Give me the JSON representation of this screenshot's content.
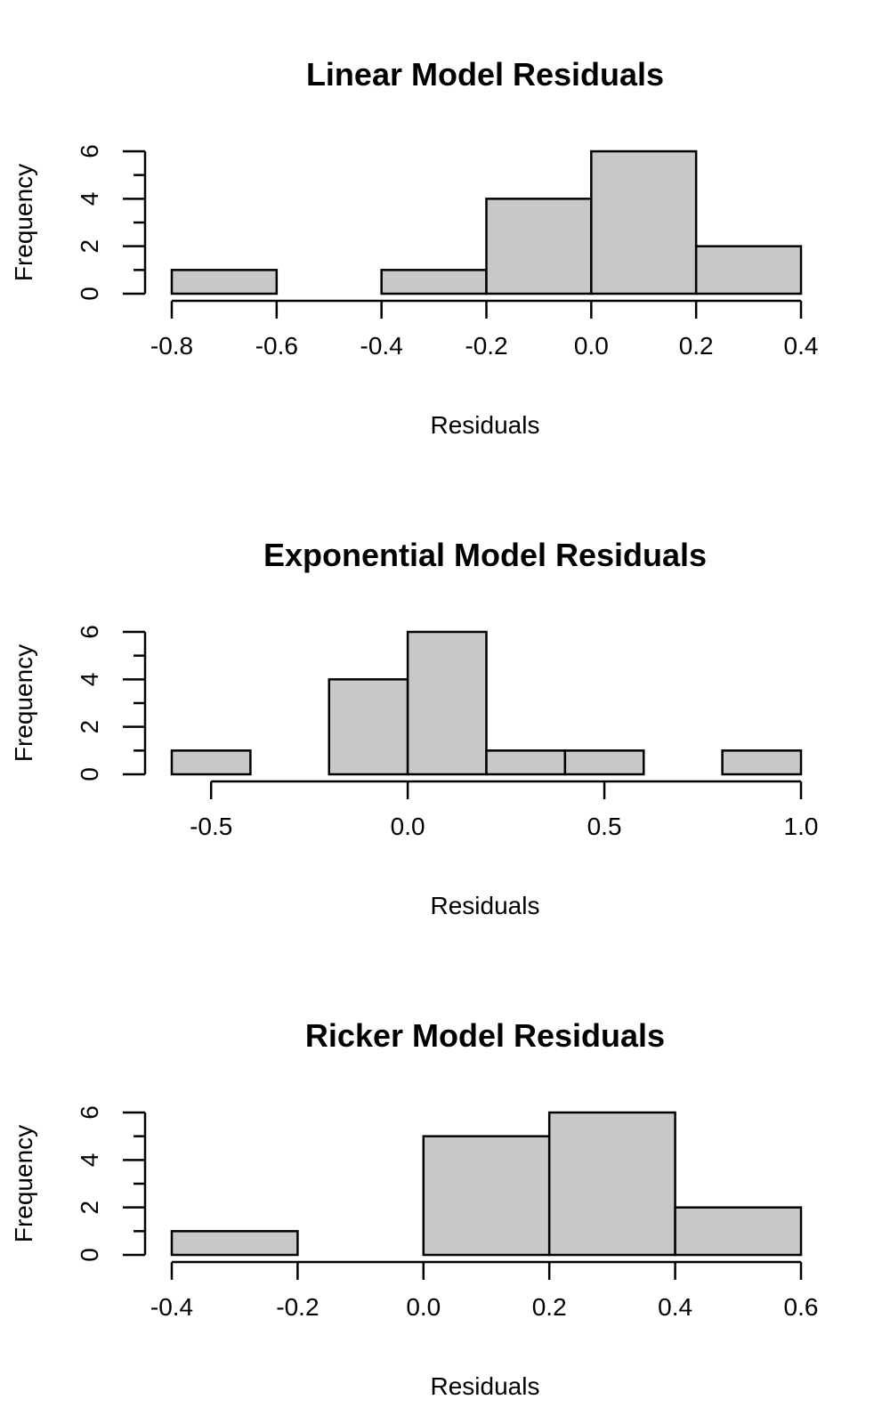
{
  "chart_data": [
    {
      "type": "bar",
      "title": "Linear Model Residuals",
      "xlabel": "Residuals",
      "ylabel": "Frequency",
      "bin_edges": [
        -0.8,
        -0.6,
        -0.4,
        -0.2,
        0.0,
        0.2,
        0.4
      ],
      "values": [
        1,
        0,
        1,
        4,
        6,
        2
      ],
      "xlim": [
        -0.8,
        0.4
      ],
      "ylim": [
        0,
        6
      ],
      "x_ticks": [
        -0.8,
        -0.6,
        -0.4,
        -0.2,
        0.0,
        0.2,
        0.4
      ],
      "x_tick_labels": [
        "-0.8",
        "-0.6",
        "-0.4",
        "-0.2",
        "0.0",
        "0.2",
        "0.4"
      ],
      "y_ticks": [
        0,
        2,
        4,
        6
      ],
      "y_tick_labels": [
        "0",
        "2",
        "4",
        "6"
      ],
      "y_minor_ticks": [
        1,
        3,
        5
      ],
      "bar_color": "#c8c8c8",
      "grid": false
    },
    {
      "type": "bar",
      "title": "Exponential Model Residuals",
      "xlabel": "Residuals",
      "ylabel": "Frequency",
      "bin_edges": [
        -0.6,
        -0.4,
        -0.2,
        0.0,
        0.2,
        0.4,
        0.6,
        0.8,
        1.0
      ],
      "values": [
        1,
        0,
        4,
        6,
        1,
        1,
        0,
        1
      ],
      "xlim": [
        -0.6,
        1.0
      ],
      "ylim": [
        0,
        6
      ],
      "x_ticks": [
        -0.5,
        0.0,
        0.5,
        1.0
      ],
      "x_tick_labels": [
        "-0.5",
        "0.0",
        "0.5",
        "1.0"
      ],
      "y_ticks": [
        0,
        2,
        4,
        6
      ],
      "y_tick_labels": [
        "0",
        "2",
        "4",
        "6"
      ],
      "y_minor_ticks": [
        1,
        3,
        5
      ],
      "bar_color": "#c8c8c8",
      "grid": false
    },
    {
      "type": "bar",
      "title": "Ricker Model Residuals",
      "xlabel": "Residuals",
      "ylabel": "Frequency",
      "bin_edges": [
        -0.4,
        -0.2,
        0.0,
        0.2,
        0.4,
        0.6
      ],
      "values": [
        1,
        0,
        5,
        6,
        2
      ],
      "xlim": [
        -0.4,
        0.6
      ],
      "ylim": [
        0,
        6
      ],
      "x_ticks": [
        -0.4,
        -0.2,
        0.0,
        0.2,
        0.4,
        0.6
      ],
      "x_tick_labels": [
        "-0.4",
        "-0.2",
        "0.0",
        "0.2",
        "0.4",
        "0.6"
      ],
      "y_ticks": [
        0,
        2,
        4,
        6
      ],
      "y_tick_labels": [
        "0",
        "2",
        "4",
        "6"
      ],
      "y_minor_ticks": [
        1,
        3,
        5
      ],
      "bar_color": "#c8c8c8",
      "grid": false
    }
  ]
}
